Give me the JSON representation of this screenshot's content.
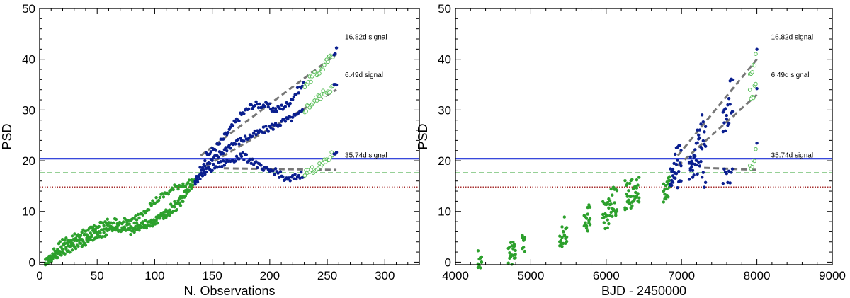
{
  "chart_data": [
    {
      "type": "scatter",
      "title": "",
      "xlabel": "N. Observations",
      "ylabel": "PSD",
      "xlim": [
        0,
        330
      ],
      "ylim": [
        -0.5,
        50
      ],
      "xticks": [
        0,
        50,
        100,
        150,
        200,
        250,
        300
      ],
      "yticks": [
        0,
        10,
        20,
        30,
        40,
        50
      ],
      "colors": {
        "early": "#2ca02c",
        "late": "#0a1f8f",
        "open": "#5bbf5b",
        "trend": "#777777",
        "blue_line": "#1c2fd6",
        "green_line": "#2ca02c",
        "red_line": "#a83232"
      },
      "hlines": [
        {
          "name": "blue-threshold",
          "y": 20.4,
          "style": "solid",
          "color": "#1c2fd6"
        },
        {
          "name": "green-threshold",
          "y": 17.6,
          "style": "dashed",
          "color": "#2ca02c"
        },
        {
          "name": "red-threshold",
          "y": 14.8,
          "style": "dotted",
          "color": "#a83232"
        }
      ],
      "series": [
        {
          "name": "16.82d signal",
          "label_y": 44.5,
          "x": [
            5,
            20,
            40,
            60,
            80,
            100,
            120,
            135,
            145,
            155,
            165,
            175,
            185,
            195,
            205,
            215,
            225,
            235,
            245,
            258
          ],
          "y": [
            0,
            2,
            4,
            6,
            7,
            8,
            11,
            16,
            21,
            23,
            26,
            29,
            31,
            31,
            30,
            31,
            34,
            36,
            38,
            42
          ]
        },
        {
          "name": "6.49d signal",
          "label_y": 37.0,
          "x": [
            5,
            20,
            40,
            60,
            80,
            100,
            120,
            135,
            145,
            155,
            165,
            175,
            185,
            195,
            205,
            215,
            225,
            235,
            245,
            258
          ],
          "y": [
            0,
            3,
            5,
            7,
            6,
            8,
            12,
            16,
            19,
            21,
            23,
            24,
            25,
            26,
            27,
            28,
            29,
            31,
            33,
            35
          ]
        },
        {
          "name": "35.74d signal",
          "label_y": 21.2,
          "x": [
            5,
            20,
            40,
            60,
            80,
            100,
            120,
            135,
            145,
            155,
            165,
            175,
            185,
            195,
            205,
            215,
            225,
            235,
            245,
            258
          ],
          "y": [
            0,
            4,
            6,
            8,
            8,
            12,
            15,
            16,
            18,
            19,
            20,
            21,
            20,
            18,
            18,
            16,
            17,
            18,
            19,
            22
          ]
        }
      ],
      "trends": [
        {
          "x": [
            140,
            258
          ],
          "y": [
            21,
            41
          ]
        },
        {
          "x": [
            145,
            258
          ],
          "y": [
            19,
            34
          ]
        },
        {
          "x": [
            160,
            258
          ],
          "y": [
            18.5,
            18.2
          ]
        }
      ],
      "open_ranges": [
        [
          230,
          255
        ]
      ]
    },
    {
      "type": "scatter",
      "title": "",
      "xlabel": "BJD - 2450000",
      "ylabel": "PSD",
      "xlim": [
        4000,
        9000
      ],
      "ylim": [
        -0.5,
        50
      ],
      "xticks": [
        4000,
        5000,
        6000,
        7000,
        8000,
        9000
      ],
      "yticks": [
        0,
        10,
        20,
        30,
        40,
        50
      ],
      "colors": {
        "early": "#2ca02c",
        "late": "#0a1f8f",
        "open": "#5bbf5b",
        "trend": "#777777",
        "blue_line": "#1c2fd6",
        "green_line": "#2ca02c",
        "red_line": "#a83232"
      },
      "hlines": [
        {
          "name": "blue-threshold",
          "y": 20.4,
          "style": "solid",
          "color": "#1c2fd6"
        },
        {
          "name": "green-threshold",
          "y": 17.6,
          "style": "dashed",
          "color": "#2ca02c"
        },
        {
          "name": "red-threshold",
          "y": 14.8,
          "style": "dotted",
          "color": "#a83232"
        }
      ],
      "series": [
        {
          "name": "16.82d signal",
          "label_y": 44.5,
          "x": [
            4300,
            4750,
            4900,
            5400,
            5450,
            5750,
            6000,
            6100,
            6250,
            6400,
            6800,
            6900,
            6950,
            7150,
            7250,
            7300,
            7600,
            7650,
            7950,
            8000
          ],
          "y": [
            1,
            3,
            5,
            5,
            8,
            10,
            12,
            14,
            15,
            16,
            14,
            20,
            22,
            20,
            28,
            27,
            30,
            35,
            38,
            42
          ]
        },
        {
          "name": "6.49d signal",
          "label_y": 37.0,
          "x": [
            4300,
            4750,
            4900,
            5400,
            5450,
            5750,
            6000,
            6100,
            6250,
            6400,
            6800,
            6900,
            6950,
            7150,
            7250,
            7300,
            7600,
            7650,
            7950,
            8000
          ],
          "y": [
            0,
            2,
            4,
            4,
            6,
            8,
            9,
            11,
            12,
            14,
            13,
            17,
            19,
            19,
            24,
            23,
            27,
            30,
            33,
            35
          ]
        },
        {
          "name": "35.74d signal",
          "label_y": 21.2,
          "x": [
            4300,
            4750,
            4900,
            5400,
            5450,
            5750,
            6000,
            6100,
            6250,
            6400,
            6800,
            6900,
            6950,
            7150,
            7250,
            7300,
            7600,
            7650,
            7950,
            8000
          ],
          "y": [
            0,
            1,
            3,
            3,
            5,
            7,
            8,
            9,
            11,
            12,
            15,
            18,
            16,
            18,
            19,
            16,
            17,
            17,
            19,
            22
          ]
        }
      ],
      "trends": [
        {
          "x": [
            6950,
            8000
          ],
          "y": [
            21,
            40
          ]
        },
        {
          "x": [
            6950,
            8000
          ],
          "y": [
            19,
            33
          ]
        },
        {
          "x": [
            7300,
            8000
          ],
          "y": [
            18.6,
            18.2
          ]
        }
      ],
      "open_ranges": [
        [
          7900,
          7990
        ]
      ]
    }
  ]
}
